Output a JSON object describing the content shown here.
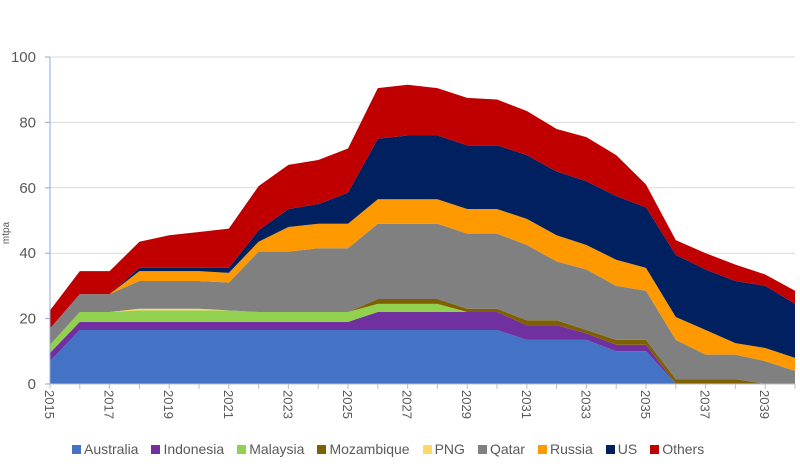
{
  "chart_data": {
    "type": "area",
    "stacked": true,
    "title": "",
    "xlabel": "",
    "ylabel": "mtpa",
    "ylim": [
      0,
      100
    ],
    "yticks": [
      0,
      20,
      40,
      60,
      80,
      100
    ],
    "xtick_labels": [
      "2015",
      "2017",
      "2019",
      "2021",
      "2023",
      "2025",
      "2027",
      "2029",
      "2031",
      "2033",
      "2035",
      "2037",
      "2039"
    ],
    "grid": "horizontal",
    "legend_position": "bottom",
    "x": [
      2015,
      2016,
      2017,
      2018,
      2019,
      2020,
      2021,
      2022,
      2023,
      2024,
      2025,
      2026,
      2027,
      2028,
      2029,
      2030,
      2031,
      2032,
      2033,
      2034,
      2035,
      2036,
      2037,
      2038,
      2039,
      2040
    ],
    "series": [
      {
        "name": "Australia",
        "color": "#4472C4",
        "values": [
          7,
          16.5,
          16.5,
          16.5,
          16.5,
          16.5,
          16.5,
          16.5,
          16.5,
          16.5,
          16.5,
          16.5,
          16.5,
          16.5,
          16.5,
          16.5,
          13.5,
          13.5,
          13.5,
          10,
          10,
          0,
          0,
          0,
          0,
          0
        ]
      },
      {
        "name": "Indonesia",
        "color": "#7030A0",
        "values": [
          2.5,
          2.5,
          2.5,
          2.5,
          2.5,
          2.5,
          2.5,
          2.5,
          2.5,
          2.5,
          2.5,
          5.5,
          5.5,
          5.5,
          5.5,
          5.5,
          4.5,
          4.5,
          2,
          2,
          2,
          0,
          0,
          0,
          0,
          0
        ]
      },
      {
        "name": "Malaysia",
        "color": "#92D050",
        "values": [
          2.5,
          3,
          3,
          3.5,
          3.5,
          3.5,
          3.5,
          3,
          3,
          3,
          3,
          2.5,
          2.5,
          2.5,
          0,
          0,
          0,
          0,
          0,
          0,
          0,
          0,
          0,
          0,
          0,
          0
        ]
      },
      {
        "name": "Mozambique",
        "color": "#7F6000",
        "values": [
          0,
          0,
          0,
          0,
          0,
          0,
          0,
          0,
          0,
          0,
          0,
          1.5,
          1.5,
          1.5,
          1,
          1,
          1.5,
          1.5,
          1,
          1.5,
          1.5,
          1.5,
          1.5,
          1.5,
          0,
          0
        ]
      },
      {
        "name": "PNG",
        "color": "#FFD966",
        "values": [
          0,
          0,
          0,
          0.5,
          0.5,
          0.5,
          0,
          0,
          0,
          0,
          0,
          0,
          0,
          0,
          0,
          0,
          0,
          0,
          0,
          0,
          0,
          0,
          0,
          0,
          0,
          0
        ]
      },
      {
        "name": "Qatar",
        "color": "#808080",
        "values": [
          5,
          5.5,
          5.5,
          8.5,
          8.5,
          8.5,
          8.5,
          18.5,
          18.5,
          19.5,
          19.5,
          23,
          23,
          23,
          23,
          23,
          23,
          18,
          18.5,
          16.5,
          15,
          12,
          7.5,
          7.5,
          7,
          4
        ]
      },
      {
        "name": "Russia",
        "color": "#FF9900",
        "values": [
          0,
          0,
          0,
          3,
          3,
          3,
          3,
          3,
          7.5,
          7.5,
          7.5,
          7.5,
          7.5,
          7.5,
          7.5,
          7.5,
          8,
          8,
          7.5,
          8,
          7,
          7,
          7.5,
          3.5,
          4,
          4
        ]
      },
      {
        "name": "US",
        "color": "#002060",
        "values": [
          0,
          0,
          0,
          1,
          1,
          1,
          1.5,
          3.5,
          5.5,
          6,
          9.5,
          18.5,
          19.5,
          19.5,
          19.5,
          19.5,
          19.5,
          19.5,
          19.5,
          19.5,
          18.5,
          19,
          18.5,
          19,
          19,
          16.5
        ]
      },
      {
        "name": "Others",
        "color": "#C00000",
        "values": [
          5.5,
          7,
          7,
          8,
          10,
          11,
          12,
          13.5,
          13.5,
          13.5,
          13.5,
          15.5,
          15.5,
          14.5,
          14.5,
          14,
          13.5,
          13,
          13.5,
          12.5,
          7,
          4.5,
          5,
          5,
          3.5,
          4
        ]
      }
    ]
  }
}
